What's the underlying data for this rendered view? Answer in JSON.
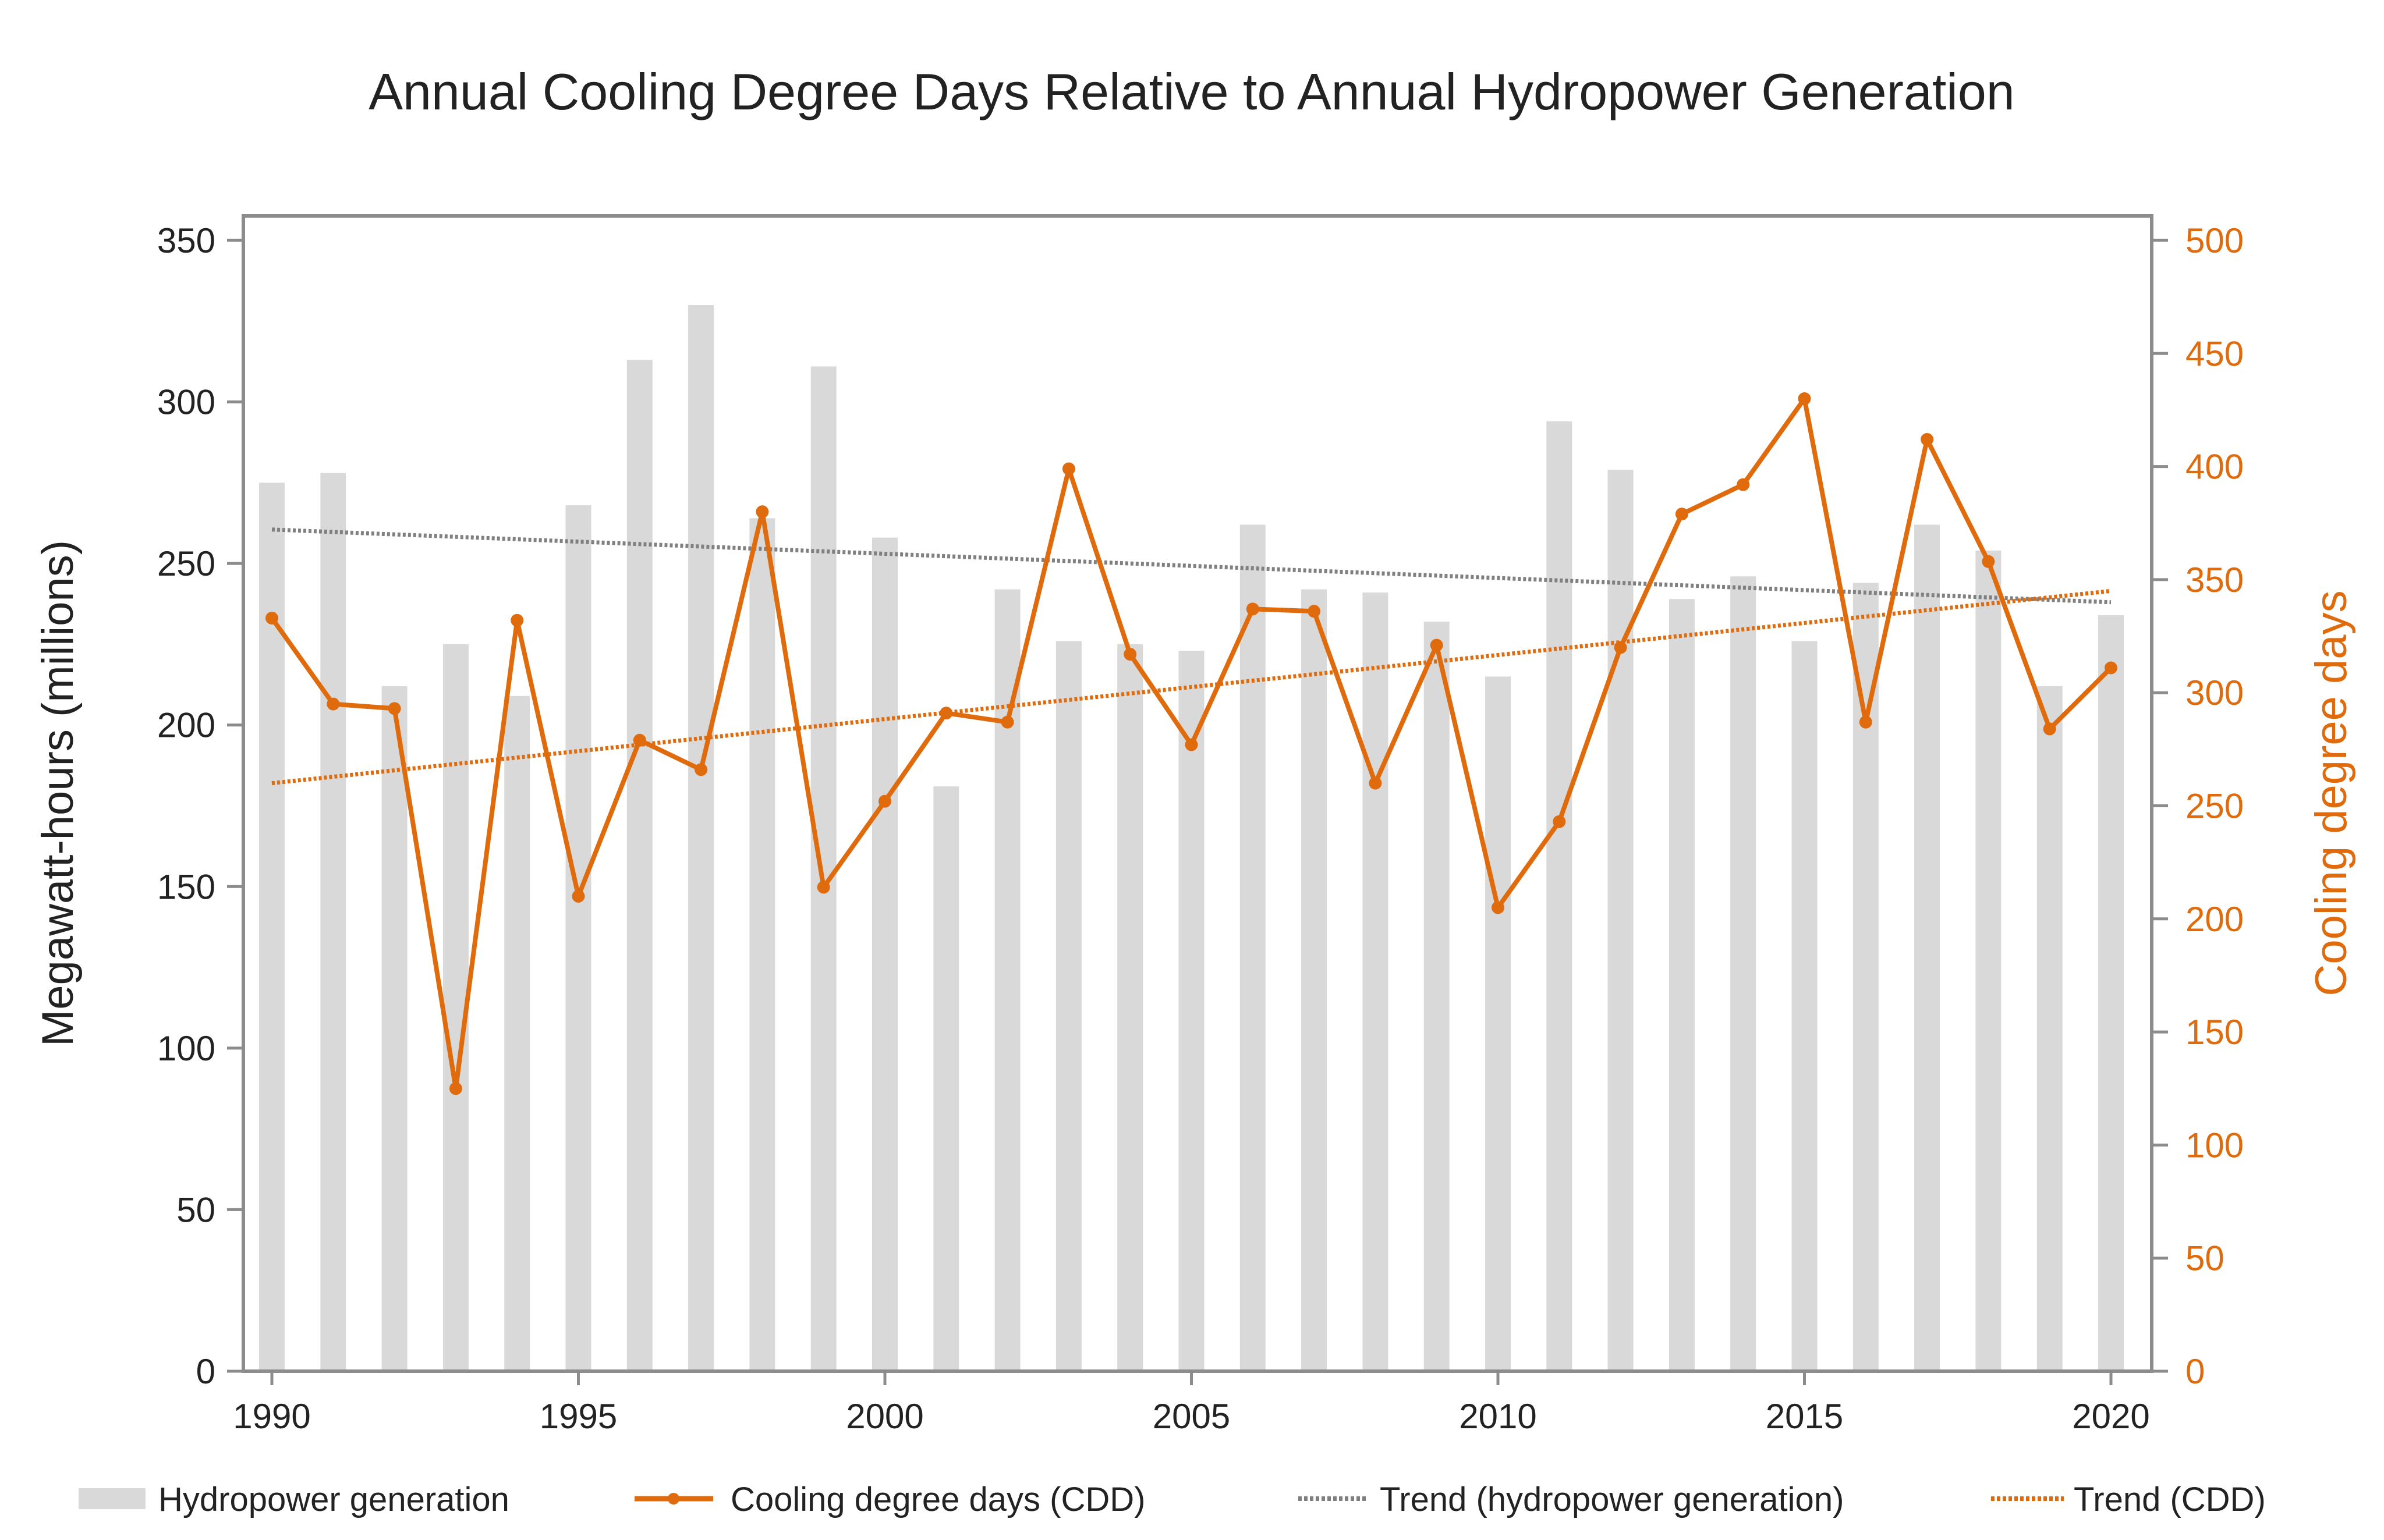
{
  "chart_data": {
    "type": "bar",
    "title": "Annual Cooling Degree Days Relative to Annual Hydropower Generation",
    "xlabel": "",
    "ylabel": "Megawatt-hours (millions)",
    "ylabel_right": "Cooling degree days",
    "x": [
      1990,
      1991,
      1992,
      1993,
      1994,
      1995,
      1996,
      1997,
      1998,
      1999,
      2000,
      2001,
      2002,
      2003,
      2004,
      2005,
      2006,
      2007,
      2008,
      2009,
      2010,
      2011,
      2012,
      2013,
      2014,
      2015,
      2016,
      2017,
      2018,
      2019,
      2020
    ],
    "x_ticks": [
      "1990",
      "1995",
      "2000",
      "2005",
      "2010",
      "2015",
      "2020"
    ],
    "ylim": [
      0,
      350
    ],
    "ylim_right": [
      0,
      500
    ],
    "y_ticks": [
      "0",
      "50",
      "100",
      "150",
      "200",
      "250",
      "300",
      "350"
    ],
    "y_ticks_right": [
      "0",
      "50",
      "100",
      "150",
      "200",
      "250",
      "300",
      "350",
      "400",
      "450",
      "500"
    ],
    "grid": false,
    "series": [
      {
        "name": "Hydropower generation",
        "kind": "bar",
        "axis": "left",
        "color": "#d9d9d9",
        "values": [
          275,
          278,
          212,
          225,
          209,
          268,
          313,
          330,
          264,
          311,
          258,
          181,
          242,
          226,
          225,
          223,
          262,
          242,
          241,
          232,
          215,
          294,
          279,
          239,
          246,
          226,
          244,
          262,
          254,
          212,
          234
        ]
      },
      {
        "name": "Cooling degree days (CDD)",
        "kind": "line",
        "axis": "right",
        "color": "#e06b0d",
        "values": [
          333,
          295,
          293,
          125,
          332,
          210,
          279,
          266,
          380,
          214,
          252,
          291,
          287,
          399,
          317,
          277,
          337,
          336,
          260,
          321,
          205,
          243,
          320,
          379,
          392,
          430,
          287,
          412,
          358,
          284,
          311
        ]
      },
      {
        "name": "Trend (hydropower generation)",
        "kind": "trend",
        "axis": "left",
        "color": "#808080",
        "start": [
          1990,
          260.5
        ],
        "end": [
          2020,
          238
        ]
      },
      {
        "name": "Trend (CDD)",
        "kind": "trend",
        "axis": "right",
        "color": "#e06b0d",
        "start": [
          1990,
          260
        ],
        "end": [
          2020,
          345
        ]
      }
    ],
    "legend_position": "bottom"
  }
}
